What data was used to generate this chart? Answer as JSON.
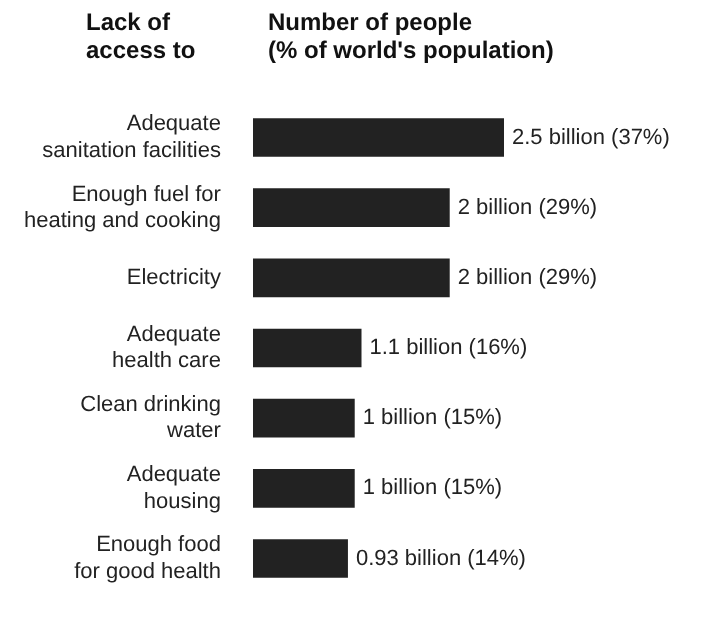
{
  "chart_data": {
    "type": "bar",
    "orientation": "horizontal",
    "ylabel": "Lack of\naccess to",
    "xlabel": "Number of people\n(% of world's population)",
    "categories": [
      "Adequate\nsanitation facilities",
      "Enough fuel for\nheating and cooking",
      "Electricity",
      "Adequate\nhealth care",
      "Clean drinking\nwater",
      "Adequate\nhousing",
      "Enough food\nfor good health"
    ],
    "values": [
      37,
      29,
      29,
      16,
      15,
      15,
      14
    ],
    "value_labels": [
      "2.5 billion (37%)",
      "2 billion (29%)",
      "2 billion (29%)",
      "1.1 billion (16%)",
      "1 billion (15%)",
      "1 billion (15%)",
      "0.93 billion (14%)"
    ],
    "color": "#222222",
    "legend": false
  }
}
